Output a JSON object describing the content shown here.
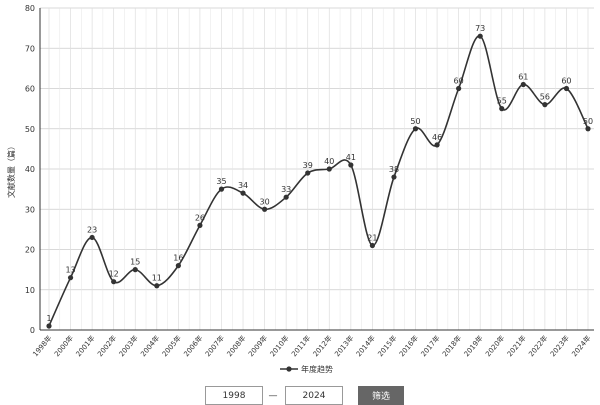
{
  "chart_data": {
    "type": "line",
    "y_label": "文献数量（篇）",
    "categories": [
      "1998年",
      "2000年",
      "2001年",
      "2002年",
      "2003年",
      "2004年",
      "2005年",
      "2006年",
      "2007年",
      "2008年",
      "2009年",
      "2010年",
      "2011年",
      "2012年",
      "2013年",
      "2014年",
      "2015年",
      "2016年",
      "2017年",
      "2018年",
      "2019年",
      "2020年",
      "2021年",
      "2022年",
      "2023年",
      "2024年"
    ],
    "series": [
      {
        "name": "年度趋势",
        "color": "#333333",
        "values": [
          1,
          13,
          23,
          12,
          15,
          11,
          16,
          26,
          35,
          34,
          30,
          33,
          39,
          40,
          41,
          21,
          38,
          50,
          46,
          60,
          73,
          55,
          61,
          56,
          60,
          50
        ]
      }
    ],
    "ylim": [
      0,
      80
    ],
    "yticks": [
      0,
      10,
      20,
      30,
      40,
      50,
      60,
      70,
      80
    ],
    "grid": true,
    "smooth": true
  },
  "filter": {
    "start": "1998",
    "separator": "—",
    "end": "2024",
    "button": "筛选"
  }
}
